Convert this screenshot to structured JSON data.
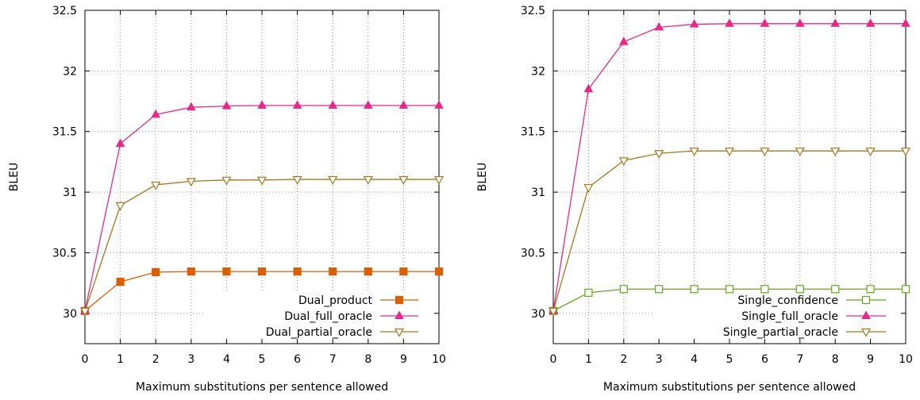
{
  "chart_data": [
    {
      "type": "line",
      "xlabel": "Maximum substitutions per sentence allowed",
      "ylabel": "BLEU",
      "xlim": [
        0,
        10
      ],
      "ylim": [
        29.75,
        32.5
      ],
      "x": [
        0,
        1,
        2,
        3,
        4,
        5,
        6,
        7,
        8,
        9,
        10
      ],
      "x_ticks": [
        "0",
        "1",
        "2",
        "3",
        "4",
        "5",
        "6",
        "7",
        "8",
        "9",
        "10"
      ],
      "y_tick_values": [
        30,
        30.5,
        31,
        31.5,
        32,
        32.5
      ],
      "y_ticks": [
        "30",
        "30.5",
        "31",
        "31.5",
        "32",
        "32.5"
      ],
      "grid": true,
      "legend_position": "bottom-right",
      "series": [
        {
          "name": "Dual_product",
          "color": "#d95f02",
          "marker": "filled-square",
          "values": [
            30.02,
            30.26,
            30.34,
            30.345,
            30.345,
            30.345,
            30.345,
            30.345,
            30.345,
            30.345,
            30.345
          ]
        },
        {
          "name": "Dual_full_oracle",
          "color": "#e7298a",
          "marker": "filled-triangle-up",
          "values": [
            30.02,
            31.4,
            31.64,
            31.7,
            31.71,
            31.715,
            31.715,
            31.715,
            31.715,
            31.715,
            31.715
          ]
        },
        {
          "name": "Dual_partial_oracle",
          "color": "#a6761d",
          "marker": "open-triangle-down",
          "values": [
            30.02,
            30.89,
            31.06,
            31.09,
            31.1,
            31.1,
            31.105,
            31.105,
            31.105,
            31.105,
            31.105
          ]
        }
      ]
    },
    {
      "type": "line",
      "xlabel": "Maximum substitutions per sentence allowed",
      "ylabel": "BLEU",
      "xlim": [
        0,
        10
      ],
      "ylim": [
        29.75,
        32.5
      ],
      "x": [
        0,
        1,
        2,
        3,
        4,
        5,
        6,
        7,
        8,
        9,
        10
      ],
      "x_ticks": [
        "0",
        "1",
        "2",
        "3",
        "4",
        "5",
        "6",
        "7",
        "8",
        "9",
        "10"
      ],
      "y_tick_values": [
        30,
        30.5,
        31,
        31.5,
        32,
        32.5
      ],
      "y_ticks": [
        "30",
        "30.5",
        "31",
        "31.5",
        "32",
        "32.5"
      ],
      "grid": true,
      "legend_position": "bottom-right",
      "series": [
        {
          "name": "Single_confidence",
          "color": "#66a61e",
          "marker": "open-square",
          "values": [
            30.02,
            30.17,
            30.2,
            30.2,
            30.2,
            30.2,
            30.2,
            30.2,
            30.2,
            30.2,
            30.2
          ]
        },
        {
          "name": "Single_full_oracle",
          "color": "#e7298a",
          "marker": "filled-triangle-up",
          "values": [
            30.02,
            31.85,
            32.24,
            32.36,
            32.385,
            32.39,
            32.39,
            32.39,
            32.39,
            32.39,
            32.39
          ]
        },
        {
          "name": "Single_partial_oracle",
          "color": "#a6761d",
          "marker": "open-triangle-down",
          "values": [
            30.02,
            31.04,
            31.26,
            31.32,
            31.34,
            31.34,
            31.34,
            31.34,
            31.34,
            31.34,
            31.34
          ]
        }
      ]
    }
  ]
}
